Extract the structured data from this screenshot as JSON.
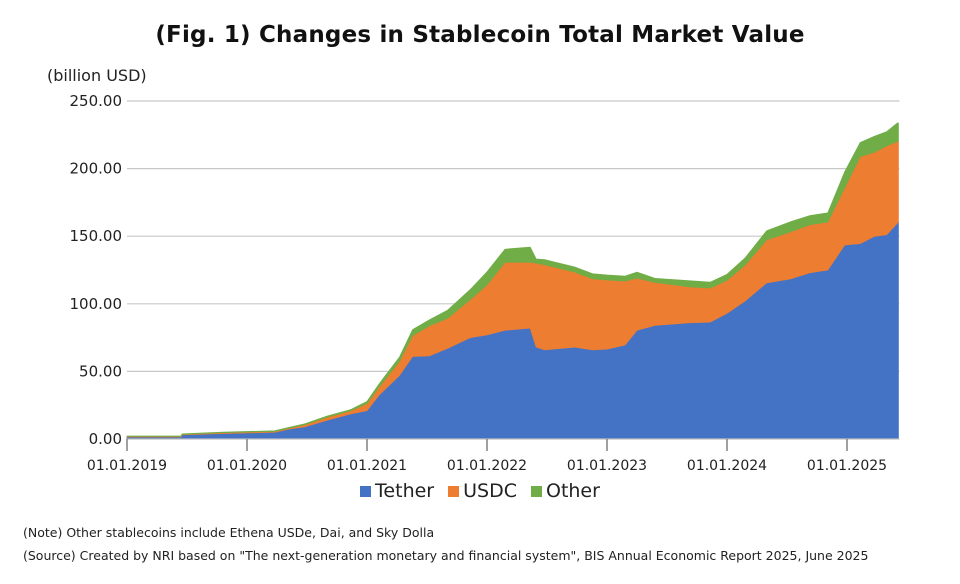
{
  "chart_data": {
    "type": "area",
    "stacked": true,
    "title": "(Fig. 1) Changes in Stablecoin Total Market Value",
    "ylabel": "(billion USD)",
    "xlabel": "",
    "ylim": [
      0,
      250
    ],
    "yticks": [
      0,
      50,
      100,
      150,
      200,
      250
    ],
    "ytick_labels": [
      "0.00",
      "50.00",
      "100.00",
      "150.00",
      "200.00",
      "250.00"
    ],
    "xlim": [
      2019.0,
      2025.42
    ],
    "xticks": [
      2019,
      2020,
      2021,
      2022,
      2023,
      2024,
      2025
    ],
    "xtick_labels": [
      "01.01.2019",
      "01.01.2020",
      "01.01.2021",
      "01.01.2022",
      "01.01.2023",
      "01.01.2024",
      "01.01.2025"
    ],
    "grid": "horizontal",
    "legend_position": "bottom",
    "x": [
      2019.0,
      2019.45,
      2019.46,
      2019.8,
      2020.23,
      2020.36,
      2020.48,
      2020.67,
      2020.86,
      2021.0,
      2021.1,
      2021.27,
      2021.38,
      2021.52,
      2021.67,
      2021.86,
      2022.0,
      2022.15,
      2022.36,
      2022.41,
      2022.48,
      2022.73,
      2022.88,
      2023.0,
      2023.15,
      2023.25,
      2023.4,
      2023.69,
      2023.86,
      2024.0,
      2024.15,
      2024.33,
      2024.53,
      2024.69,
      2024.84,
      2024.98,
      2025.11,
      2025.23,
      2025.33,
      2025.42
    ],
    "series": [
      {
        "name": "Tether",
        "color": "#4472C4",
        "values": [
          1.5,
          1.5,
          3.0,
          4.1,
          5.0,
          7.5,
          9.0,
          14.0,
          18.5,
          21.0,
          32.5,
          47.0,
          61.0,
          61.5,
          67.0,
          75.0,
          77.0,
          80.5,
          82.0,
          68.0,
          66.0,
          68.0,
          66.0,
          66.5,
          69.5,
          80.5,
          84.0,
          86.0,
          86.5,
          93.0,
          102.0,
          115.5,
          118.5,
          123.0,
          125.0,
          143.5,
          144.5,
          150.0,
          151.0,
          160.5
        ]
      },
      {
        "name": "USDC",
        "color": "#ED7D31",
        "values": [
          0.4,
          0.4,
          0.5,
          0.6,
          0.7,
          0.8,
          1.5,
          2.2,
          2.3,
          5.2,
          5.9,
          10.4,
          15.5,
          22.2,
          22.2,
          28.1,
          37.0,
          50.3,
          48.8,
          62.1,
          62.9,
          55.5,
          52.5,
          51.1,
          47.3,
          38.5,
          31.8,
          26.6,
          25.1,
          24.4,
          26.6,
          31.8,
          34.8,
          35.5,
          35.5,
          42.2,
          64.4,
          62.2,
          65.8,
          59.9
        ]
      },
      {
        "name": "Other",
        "color": "#70AD47",
        "values": [
          0.3,
          0.3,
          0.3,
          0.3,
          0.4,
          0.5,
          0.7,
          0.8,
          0.8,
          1.5,
          2.2,
          3.0,
          4.4,
          4.4,
          5.9,
          7.4,
          9.6,
          9.6,
          11.1,
          3.0,
          3.7,
          3.7,
          3.7,
          3.7,
          3.7,
          4.4,
          3.0,
          4.4,
          4.4,
          4.4,
          5.2,
          6.7,
          7.4,
          6.7,
          6.7,
          11.8,
          10.4,
          11.8,
          10.4,
          13.3
        ]
      }
    ]
  },
  "notes": {
    "note": "(Note) Other stablecoins include Ethena USDe, Dai, and Sky Dolla",
    "source": "(Source) Created by NRI based on \"The next-generation monetary and financial system\", BIS Annual Economic Report 2025, June 2025"
  }
}
